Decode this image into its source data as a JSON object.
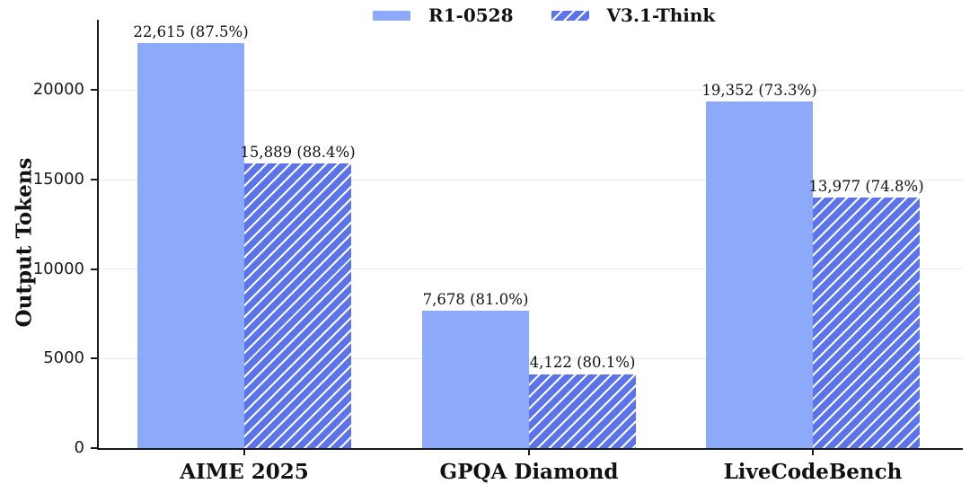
{
  "chart_data": {
    "type": "bar",
    "title": "",
    "ylabel": "Output Tokens",
    "xlabel": "",
    "categories": [
      "AIME 2025",
      "GPQA Diamond",
      "LiveCodeBench"
    ],
    "series": [
      {
        "name": "R1-0528",
        "pattern": "solid",
        "color": "#8CA9FA",
        "values": [
          22615,
          7678,
          19352
        ],
        "accuracies_pct": [
          87.5,
          81.0,
          73.3
        ],
        "bar_labels": [
          "22,615 (87.5%)",
          "7,678 (81.0%)",
          "19,352 (73.3%)"
        ]
      },
      {
        "name": "V3.1-Think",
        "pattern": "diagonal-hatch",
        "color": "#5B73EB",
        "hatch_color": "#FFFFFF",
        "values": [
          15889,
          4122,
          13977
        ],
        "accuracies_pct": [
          88.4,
          80.1,
          74.8
        ],
        "bar_labels": [
          "15,889 (88.4%)",
          "4,122 (80.1%)",
          "13,977 (74.8%)"
        ]
      }
    ],
    "y_ticks": [
      0,
      5000,
      10000,
      15000,
      20000
    ],
    "y_tick_labels": [
      "0",
      "5000",
      "10000",
      "15000",
      "20000"
    ],
    "ylim": [
      0,
      23880
    ],
    "grid": "horizontal",
    "legend_position": "top-center"
  }
}
